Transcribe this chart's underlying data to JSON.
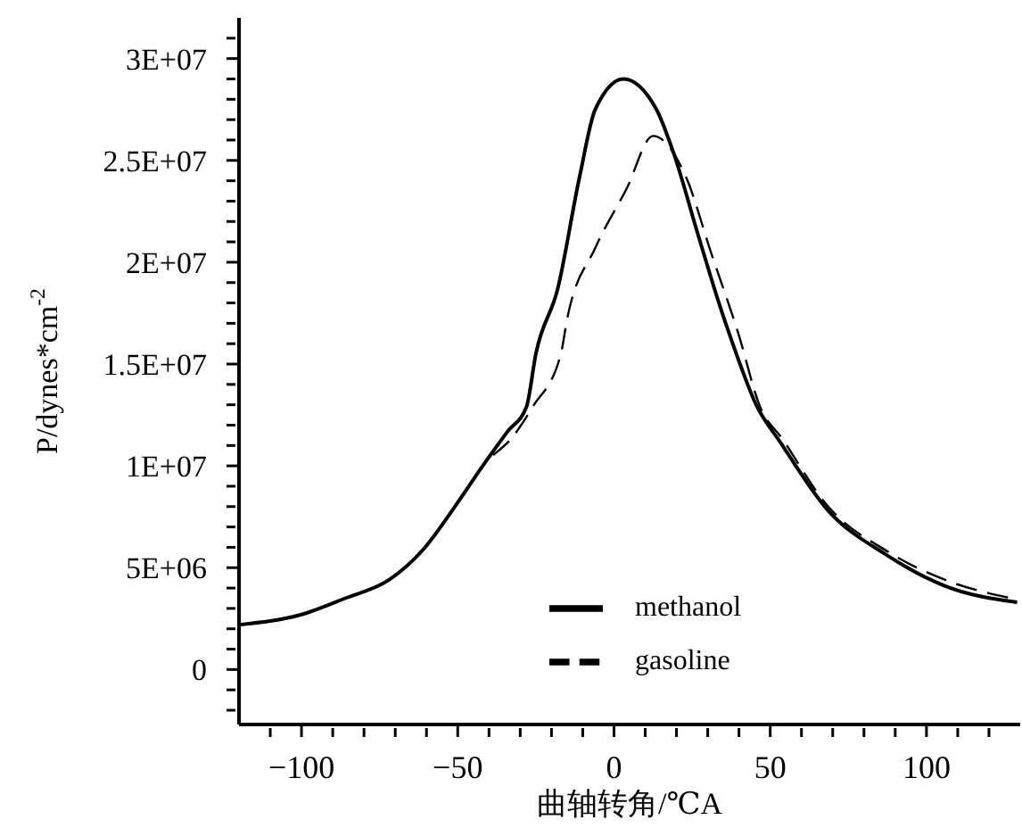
{
  "chart_data": {
    "type": "line",
    "xlabel": "曲轴转角/℃A",
    "ylabel": "P/dynes*cm$^{-2}$",
    "xlim": [
      -120,
      130
    ],
    "ylim": [
      -2700000,
      32000000
    ],
    "xticks": [
      {
        "value": -110,
        "label": null
      },
      -100,
      {
        "value": -90,
        "label": null
      },
      {
        "value": -80,
        "label": null
      },
      {
        "value": -70,
        "label": null
      },
      {
        "value": -60,
        "label": null
      },
      -50,
      {
        "value": -40,
        "label": null
      },
      {
        "value": -30,
        "label": null
      },
      {
        "value": -20,
        "label": null
      },
      {
        "value": -10,
        "label": null
      },
      0,
      {
        "value": 10,
        "label": null
      },
      {
        "value": 20,
        "label": null
      },
      {
        "value": 30,
        "label": null
      },
      {
        "value": 40,
        "label": null
      },
      50,
      {
        "value": 60,
        "label": null
      },
      {
        "value": 70,
        "label": null
      },
      {
        "value": 80,
        "label": null
      },
      {
        "value": 90,
        "label": null
      },
      100,
      {
        "value": 110,
        "label": null
      },
      {
        "value": 120,
        "label": null
      }
    ],
    "yticks": [
      {
        "value": -2000000,
        "label": null
      },
      {
        "value": -1000000,
        "label": null
      },
      0,
      {
        "value": 1000000,
        "label": null
      },
      {
        "value": 2000000,
        "label": null
      },
      {
        "value": 3000000,
        "label": null
      },
      {
        "value": 4000000,
        "label": null
      },
      {
        "value": 5000000,
        "label": "5E+06"
      },
      {
        "value": 6000000,
        "label": null
      },
      {
        "value": 7000000,
        "label": null
      },
      {
        "value": 8000000,
        "label": null
      },
      {
        "value": 9000000,
        "label": null
      },
      {
        "value": 10000000,
        "label": "1E+07"
      },
      {
        "value": 11000000,
        "label": null
      },
      {
        "value": 12000000,
        "label": null
      },
      {
        "value": 13000000,
        "label": null
      },
      {
        "value": 14000000,
        "label": null
      },
      {
        "value": 15000000,
        "label": "1.5E+07"
      },
      {
        "value": 16000000,
        "label": null
      },
      {
        "value": 17000000,
        "label": null
      },
      {
        "value": 18000000,
        "label": null
      },
      {
        "value": 19000000,
        "label": null
      },
      {
        "value": 20000000,
        "label": "2E+07"
      },
      {
        "value": 21000000,
        "label": null
      },
      {
        "value": 22000000,
        "label": null
      },
      {
        "value": 23000000,
        "label": null
      },
      {
        "value": 24000000,
        "label": null
      },
      {
        "value": 25000000,
        "label": "2.5E+07"
      },
      {
        "value": 26000000,
        "label": null
      },
      {
        "value": 27000000,
        "label": null
      },
      {
        "value": 28000000,
        "label": null
      },
      {
        "value": 29000000,
        "label": null
      },
      {
        "value": 30000000,
        "label": "3E+07"
      },
      {
        "value": 31000000,
        "label": null
      }
    ],
    "legend": "bottom",
    "marker": "none",
    "series": [
      {
        "name": "methanol",
        "color": "#000000",
        "line_style": "solid",
        "x": [
          -120,
          -100,
          -86,
          -72,
          -61,
          -50,
          -42,
          -34,
          -28,
          -25,
          -18,
          -11,
          -6,
          3,
          13.6,
          19,
          27,
          34,
          38,
          45.5,
          53.5,
          68,
          87.5,
          106,
          129
        ],
        "values": [
          2200000,
          2700000,
          3500000,
          4400000,
          5900000,
          8200000,
          10000000,
          11700000,
          12900000,
          15500000,
          18700000,
          24200000,
          27500000,
          29000000,
          27500000,
          25400000,
          21300000,
          17800000,
          16000000,
          13000000,
          11100000,
          7900000,
          5600000,
          4100000,
          3300000
        ]
      },
      {
        "name": "gasoline",
        "color": "#000000",
        "line_style": "dashed",
        "x": [
          -120,
          -100,
          -86,
          -72,
          -61,
          -50,
          -42,
          -32,
          -26,
          -17,
          -15,
          -6,
          4,
          12.5,
          23,
          31,
          40,
          46.5,
          54,
          68,
          87.5,
          106,
          127
        ],
        "values": [
          2200000,
          2700000,
          3500000,
          4400000,
          5900000,
          8200000,
          10000000,
          11500000,
          12900000,
          15500000,
          17200000,
          20700000,
          23600000,
          26200000,
          24200000,
          20500000,
          16400000,
          13000000,
          11300000,
          8100000,
          5800000,
          4400000,
          3500000
        ]
      }
    ]
  }
}
